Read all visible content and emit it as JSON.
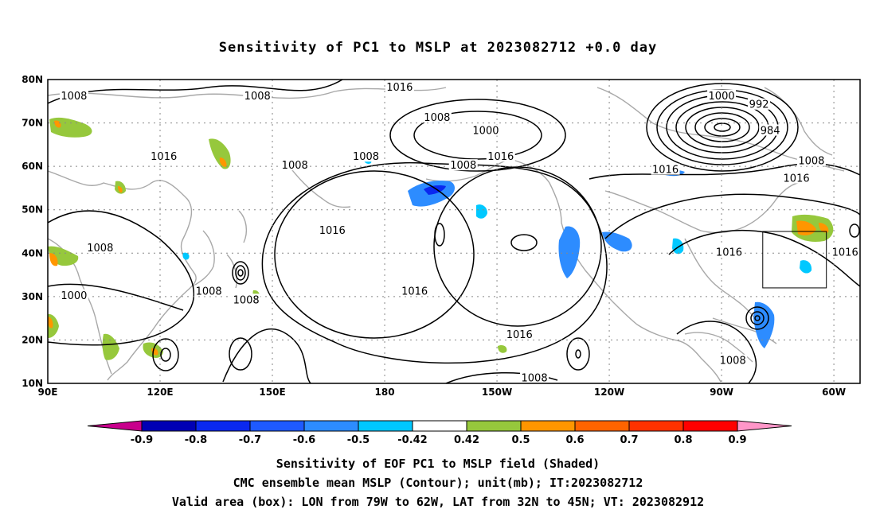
{
  "title": "Sensitivity of PC1 to MSLP at 2023082712 +0.0 day",
  "map": {
    "lon_range_deg_east": [
      90,
      307
    ],
    "lat_range": [
      10,
      80
    ],
    "lat_labels": [
      "10N",
      "20N",
      "30N",
      "40N",
      "50N",
      "60N",
      "70N",
      "80N"
    ],
    "lon_labels": [
      "90E",
      "120E",
      "150E",
      "180",
      "150W",
      "120W",
      "90W",
      "60W"
    ],
    "gridlines": "dotted",
    "valid_box": {
      "lon_west": "79W",
      "lon_east": "62W",
      "lat_south": "32N",
      "lat_north": "45N"
    },
    "contour_labels": [
      {
        "text": "1008",
        "lon": 97,
        "lat": 76
      },
      {
        "text": "1008",
        "lon": 146,
        "lat": 76
      },
      {
        "text": "1016",
        "lon": 184,
        "lat": 78
      },
      {
        "text": "1008",
        "lon": 194,
        "lat": 71
      },
      {
        "text": "1000",
        "lon": 207,
        "lat": 68
      },
      {
        "text": "1000",
        "lon": 270,
        "lat": 76
      },
      {
        "text": "992",
        "lon": 280,
        "lat": 74
      },
      {
        "text": "984",
        "lon": 283,
        "lat": 68
      },
      {
        "text": "1016",
        "lon": 121,
        "lat": 62
      },
      {
        "text": "1008",
        "lon": 156,
        "lat": 60
      },
      {
        "text": "1008",
        "lon": 175,
        "lat": 62
      },
      {
        "text": "1008",
        "lon": 201,
        "lat": 60
      },
      {
        "text": "1016",
        "lon": 211,
        "lat": 62
      },
      {
        "text": "1016",
        "lon": 255,
        "lat": 59
      },
      {
        "text": "1008",
        "lon": 294,
        "lat": 61
      },
      {
        "text": "1016",
        "lon": 290,
        "lat": 57
      },
      {
        "text": "1008",
        "lon": 104,
        "lat": 41
      },
      {
        "text": "1016",
        "lon": 166,
        "lat": 45
      },
      {
        "text": "1016",
        "lon": 272,
        "lat": 40
      },
      {
        "text": "1016",
        "lon": 303,
        "lat": 40
      },
      {
        "text": "1000",
        "lon": 97,
        "lat": 30
      },
      {
        "text": "1008",
        "lon": 133,
        "lat": 31
      },
      {
        "text": "1008",
        "lon": 143,
        "lat": 29
      },
      {
        "text": "1016",
        "lon": 188,
        "lat": 31
      },
      {
        "text": "1016",
        "lon": 216,
        "lat": 21
      },
      {
        "text": "1008",
        "lon": 220,
        "lat": 11
      },
      {
        "text": "1008",
        "lon": 273,
        "lat": 15
      }
    ]
  },
  "colorbar": {
    "labels": [
      "-0.9",
      "-0.8",
      "-0.7",
      "-0.6",
      "-0.5",
      "-0.42",
      "0.42",
      "0.5",
      "0.6",
      "0.7",
      "0.8",
      "0.9"
    ],
    "colors": [
      "#c8008c",
      "#0000b4",
      "#0a28f0",
      "#1e5aff",
      "#2d8cff",
      "#00c8ff",
      "#ffffff",
      "#96c83c",
      "#ff9600",
      "#ff6400",
      "#ff3200",
      "#ff0000",
      "#ff96c8"
    ]
  },
  "captions": {
    "line1": "Sensitivity of EOF PC1 to MSLP field (Shaded)",
    "line2": "CMC ensemble mean MSLP (Contour); unit(mb); IT:2023082712",
    "line3": "Valid area (box): LON from 79W to 62W, LAT from 32N to 45N; VT: 2023082912"
  }
}
